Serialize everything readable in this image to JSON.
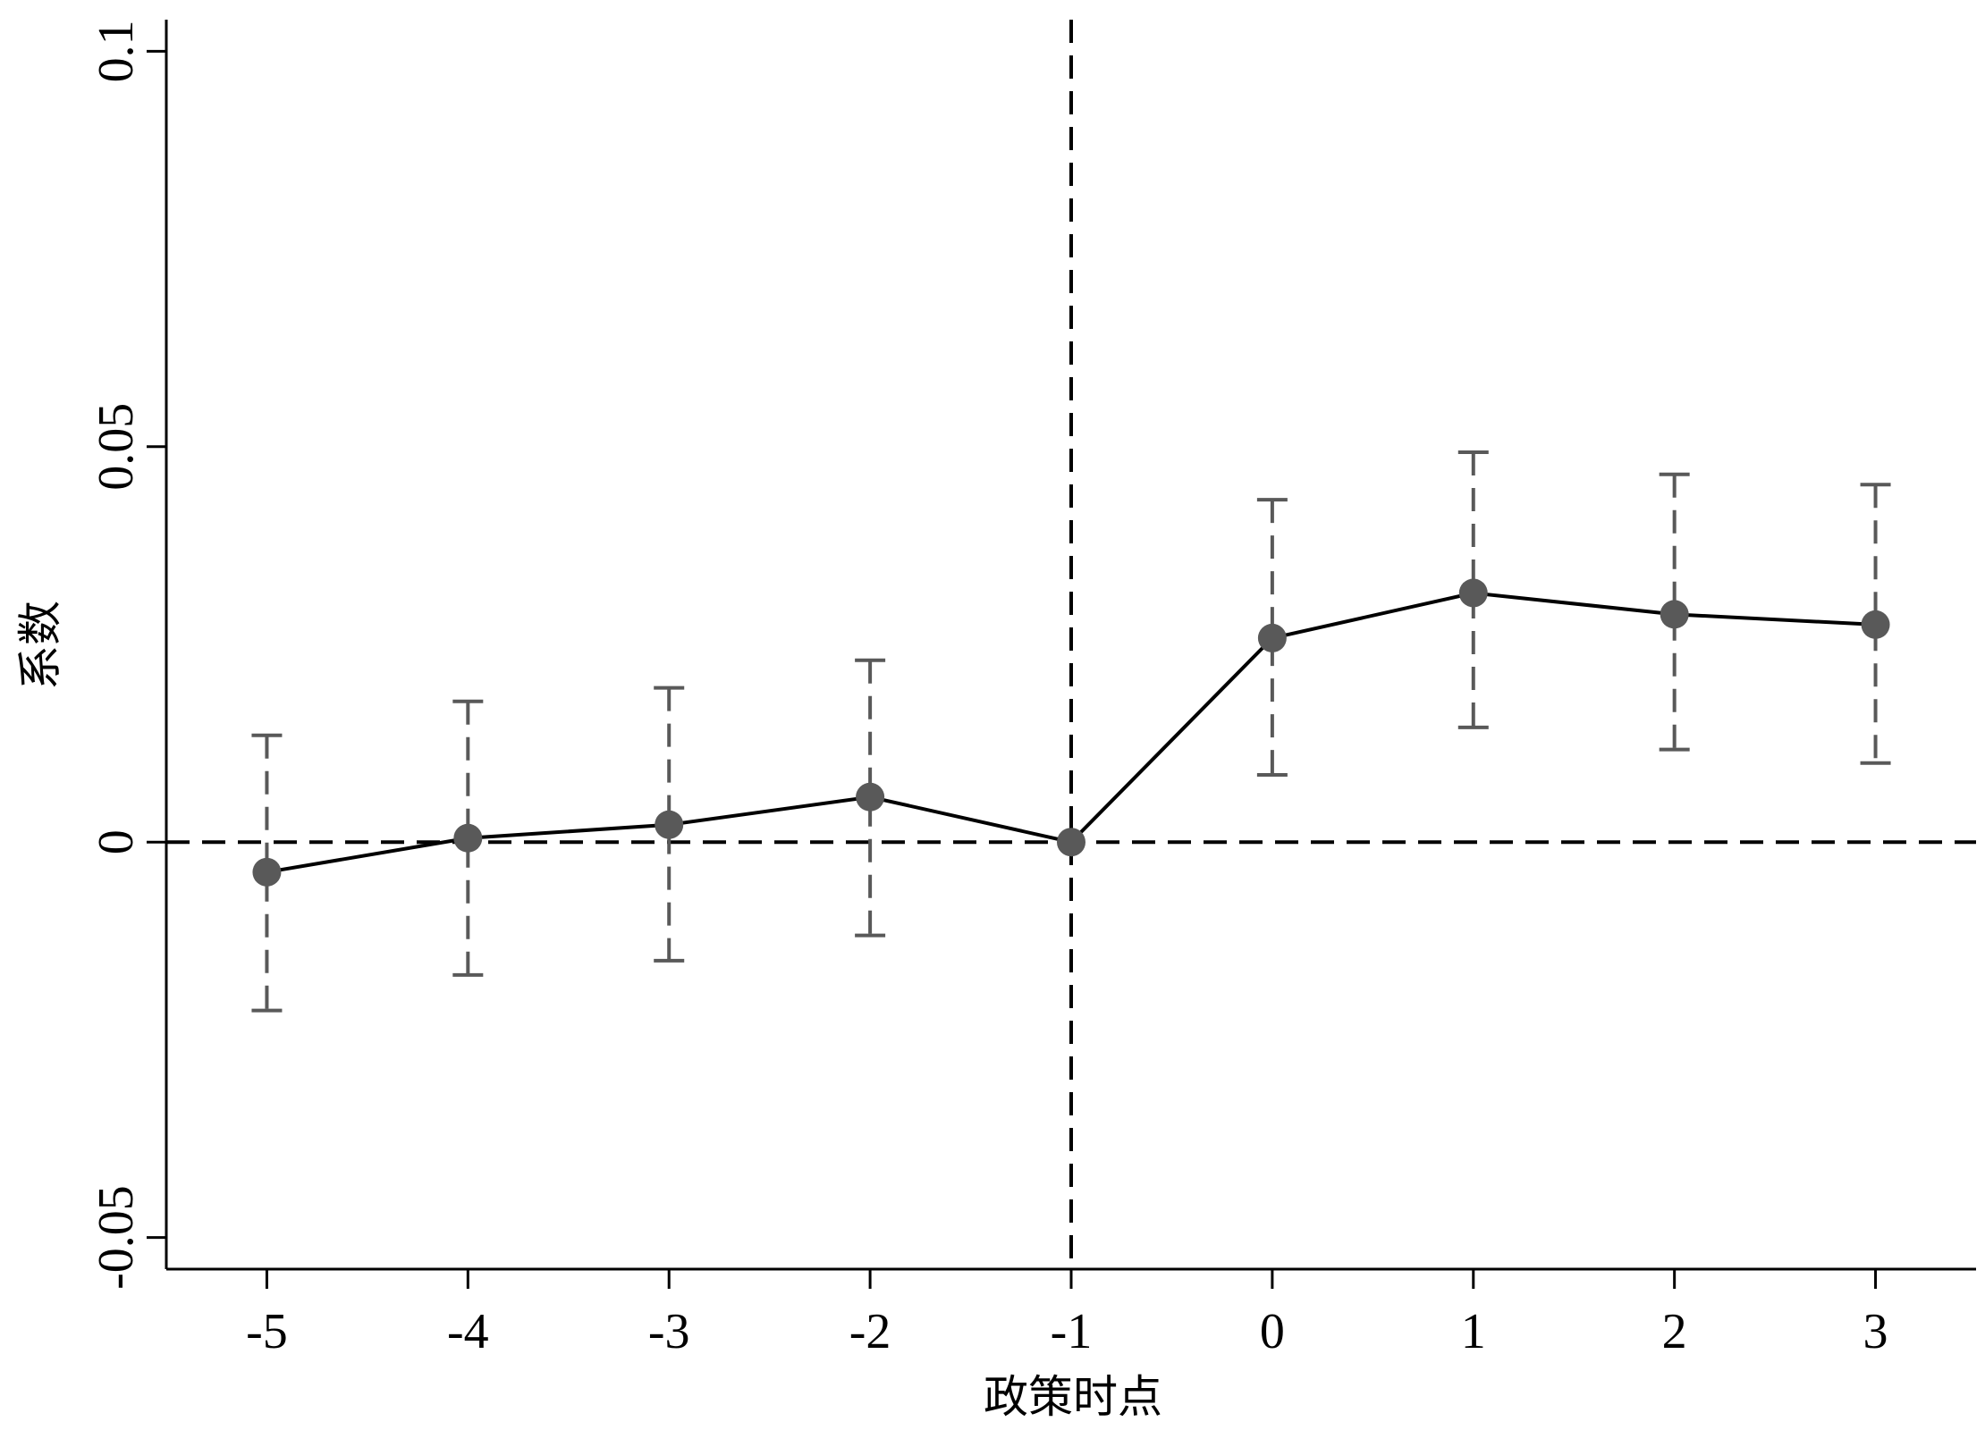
{
  "chart_data": {
    "type": "line",
    "title": "",
    "xlabel": "政策时点",
    "ylabel": "系数",
    "x": [
      -5,
      -4,
      -3,
      -2,
      -1,
      0,
      1,
      2,
      3
    ],
    "x_tick_labels": [
      "-5",
      "-4",
      "-3",
      "-2",
      "-1",
      "0",
      "1",
      "2",
      "3"
    ],
    "xlim": [
      -5.5,
      3.5
    ],
    "ylim": [
      -0.054,
      0.104
    ],
    "y_ticks": [
      -0.05,
      0,
      0.05,
      0.1
    ],
    "y_tick_labels": [
      "-0.05",
      "0",
      "0.05",
      "0.1"
    ],
    "series": [
      {
        "values": [
          -0.0038,
          0.0005,
          0.0022,
          0.0057,
          0.0,
          0.0258,
          0.0315,
          0.0288,
          0.0275
        ],
        "ci_lower": [
          -0.0213,
          -0.0168,
          -0.015,
          -0.0118,
          null,
          0.0085,
          0.0145,
          0.0117,
          0.01
        ],
        "ci_upper": [
          0.0135,
          0.0178,
          0.0195,
          0.023,
          null,
          0.0433,
          0.0493,
          0.0465,
          0.0452
        ],
        "line_color": "#000000",
        "marker_color": "#595959",
        "error_bar_color": "#595959"
      }
    ],
    "reference_lines": [
      {
        "axis": "y",
        "value": 0,
        "style": "dashed"
      },
      {
        "axis": "x",
        "value": -1,
        "style": "dashed"
      }
    ],
    "grid": false,
    "legend": "none"
  }
}
